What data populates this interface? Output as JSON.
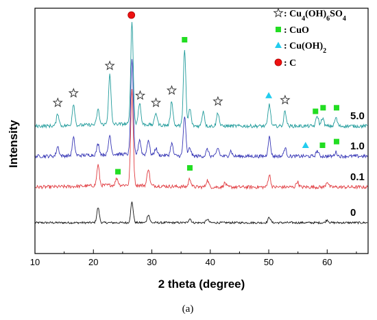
{
  "chart_data": {
    "type": "line",
    "title": "",
    "xlabel": "2 theta (degree)",
    "ylabel": "Intensity",
    "xlim": [
      10,
      67
    ],
    "x_ticks": [
      10,
      20,
      30,
      40,
      50,
      60
    ],
    "grid": false,
    "legend_position": "top-right",
    "legend": [
      {
        "symbol": "star",
        "color": "#ffffff",
        "label_parts": [
          {
            "t": ": Cu"
          },
          {
            "t": "4",
            "sub": true
          },
          {
            "t": "(OH)"
          },
          {
            "t": "6",
            "sub": true
          },
          {
            "t": "SO"
          },
          {
            "t": "4",
            "sub": true
          }
        ]
      },
      {
        "symbol": "square",
        "color": "#22dd22",
        "label_parts": [
          {
            "t": ": CuO"
          }
        ]
      },
      {
        "symbol": "triangle",
        "color": "#22ccee",
        "label_parts": [
          {
            "t": ": Cu(OH)"
          },
          {
            "t": "2",
            "sub": true
          }
        ]
      },
      {
        "symbol": "circle",
        "color": "#ee1111",
        "label_parts": [
          {
            "t": ": C"
          }
        ]
      }
    ],
    "series": [
      {
        "name": "0",
        "color": "#111111",
        "offset": 0,
        "peaks": [
          [
            20.8,
            22
          ],
          [
            26.6,
            30
          ],
          [
            29.4,
            12
          ],
          [
            36.5,
            6
          ],
          [
            39.5,
            5
          ],
          [
            50.1,
            8
          ],
          [
            60.0,
            4
          ]
        ]
      },
      {
        "name": "0.1",
        "color": "#e0393e",
        "offset": 52,
        "peaks": [
          [
            20.8,
            30
          ],
          [
            24.0,
            10
          ],
          [
            26.6,
            140
          ],
          [
            29.4,
            25
          ],
          [
            36.5,
            12
          ],
          [
            39.5,
            10
          ],
          [
            42.5,
            6
          ],
          [
            50.1,
            18
          ],
          [
            54.9,
            8
          ],
          [
            60.0,
            8
          ]
        ]
      },
      {
        "name": "1.0",
        "color": "#3535b5",
        "offset": 97,
        "peaks": [
          [
            13.9,
            14
          ],
          [
            16.6,
            26
          ],
          [
            20.8,
            16
          ],
          [
            22.8,
            28
          ],
          [
            26.6,
            140
          ],
          [
            27.9,
            22
          ],
          [
            29.4,
            22
          ],
          [
            30.7,
            10
          ],
          [
            33.4,
            18
          ],
          [
            35.6,
            58
          ],
          [
            36.5,
            12
          ],
          [
            39.5,
            10
          ],
          [
            41.3,
            12
          ],
          [
            43.5,
            8
          ],
          [
            50.1,
            28
          ],
          [
            52.8,
            12
          ],
          [
            58.3,
            8
          ],
          [
            61.5,
            6
          ]
        ]
      },
      {
        "name": "5.0",
        "color": "#1e9a9a",
        "offset": 141,
        "peaks": [
          [
            13.9,
            18
          ],
          [
            16.6,
            32
          ],
          [
            20.8,
            22
          ],
          [
            22.8,
            72
          ],
          [
            26.6,
            150
          ],
          [
            27.9,
            32
          ],
          [
            30.7,
            18
          ],
          [
            33.4,
            36
          ],
          [
            35.6,
            110
          ],
          [
            36.5,
            25
          ],
          [
            38.8,
            22
          ],
          [
            41.3,
            20
          ],
          [
            50.1,
            32
          ],
          [
            52.8,
            22
          ],
          [
            58.3,
            15
          ],
          [
            59.2,
            12
          ],
          [
            61.5,
            12
          ]
        ]
      }
    ],
    "markers": [
      {
        "symbol": "circle",
        "x": 26.5,
        "series": "5.0"
      },
      {
        "symbol": "square",
        "x": 35.6,
        "series": "5.0"
      },
      {
        "symbol": "star",
        "x": 13.9,
        "series": "5.0"
      },
      {
        "symbol": "star",
        "x": 16.6,
        "series": "5.0"
      },
      {
        "symbol": "star",
        "x": 22.8,
        "series": "5.0"
      },
      {
        "symbol": "star",
        "x": 28.0,
        "series": "5.0"
      },
      {
        "symbol": "star",
        "x": 30.7,
        "series": "5.0"
      },
      {
        "symbol": "star",
        "x": 33.4,
        "series": "5.0"
      },
      {
        "symbol": "star",
        "x": 41.3,
        "series": "5.0"
      },
      {
        "symbol": "star",
        "x": 52.8,
        "series": "5.0"
      },
      {
        "symbol": "triangle",
        "x": 50.0,
        "series": "5.0"
      },
      {
        "symbol": "square",
        "x": 58.0,
        "series": "5.0"
      },
      {
        "symbol": "square",
        "x": 59.3,
        "series": "5.0"
      },
      {
        "symbol": "square",
        "x": 61.6,
        "series": "5.0"
      },
      {
        "symbol": "triangle",
        "x": 56.3,
        "series": "1.0"
      },
      {
        "symbol": "square",
        "x": 59.2,
        "series": "1.0"
      },
      {
        "symbol": "square",
        "x": 61.6,
        "series": "1.0"
      },
      {
        "symbol": "square",
        "x": 24.2,
        "series": "0.1"
      },
      {
        "symbol": "square",
        "x": 36.5,
        "series": "0.1"
      }
    ]
  },
  "caption": "(a)"
}
